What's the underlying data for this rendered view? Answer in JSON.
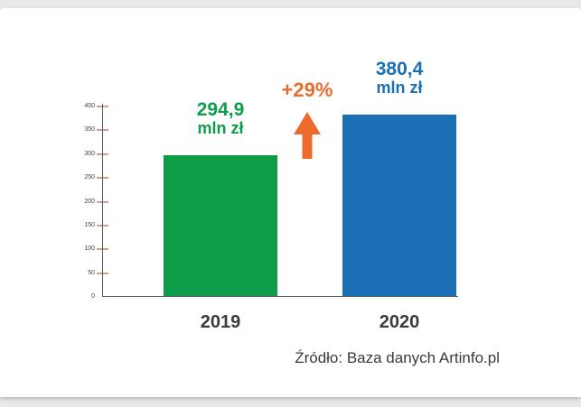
{
  "chart_data": {
    "type": "bar",
    "title": "",
    "categories": [
      "2019",
      "2020"
    ],
    "values": [
      294.9,
      380.4
    ],
    "bars": [
      {
        "year": "2019",
        "value": 294.9,
        "label_value": "294,9",
        "label_unit": "mln zł",
        "color": "#0f9c49"
      },
      {
        "year": "2020",
        "value": 380.4,
        "label_value": "380,4",
        "label_unit": "mln zł",
        "color": "#1b6fb4"
      }
    ],
    "annotation": {
      "text": "+29%",
      "color": "#ed6b2d",
      "icon": "up-arrow-icon"
    },
    "ylim": [
      0,
      400
    ],
    "yticks": [
      0,
      50,
      100,
      150,
      200,
      250,
      300,
      350,
      400
    ],
    "xlabel": "",
    "ylabel": "",
    "grid": false,
    "legend": false,
    "source": "Źródło: Baza danych Artinfo.pl",
    "colors": {
      "axis": "#58585a",
      "tick_mark": "#d2a189",
      "tick_label": "#3f3f3f",
      "category_label": "#3b3b3d",
      "source_text": "#3a3a3a",
      "card_background": "#ffffff",
      "page_background": "#e8e8e6"
    }
  }
}
